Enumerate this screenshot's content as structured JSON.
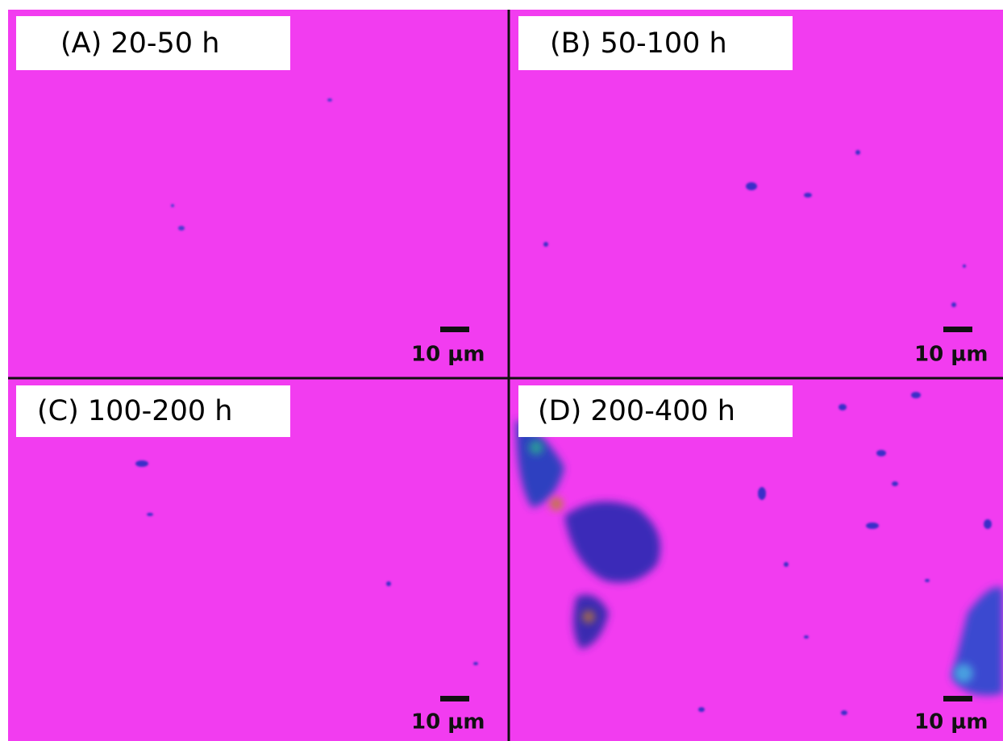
{
  "panels": [
    {
      "label": "(A) 20-50 h",
      "scale_bar": "10 µm"
    },
    {
      "label": "(B) 50-100 h",
      "scale_bar": "10 µm"
    },
    {
      "label": "(C) 100-200 h",
      "scale_bar": "10 µm"
    },
    {
      "label": "(D) 200-400 h",
      "scale_bar": "10 µm"
    }
  ]
}
